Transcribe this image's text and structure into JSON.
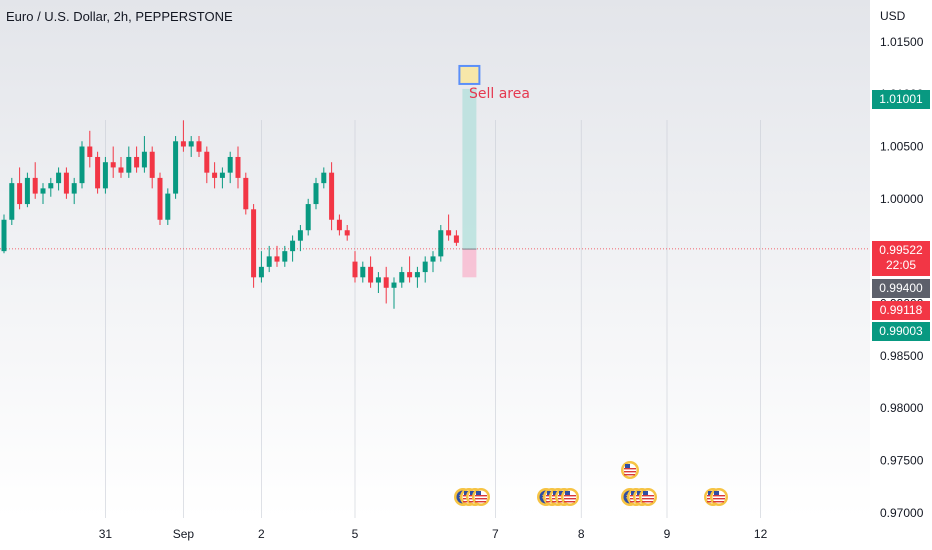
{
  "header": {
    "title": "Euro / U.S. Dollar, 2h, PEPPERSTONE",
    "currency": "USD"
  },
  "annotation": {
    "sell_label": "Sell area"
  },
  "price_tags": {
    "high": "1.01001",
    "close": "0.99522",
    "countdown": "22:05",
    "grey": "0.99400",
    "red": "0.99118",
    "green": "0.99003"
  },
  "colors": {
    "up": "#089981",
    "down": "#f23645",
    "accent": "#2962ff",
    "zone_target": "#b2dfdb",
    "zone_stop": "#f8bbd0"
  },
  "chart_data": {
    "type": "candlestick",
    "title": "Euro / U.S. Dollar, 2h, PEPPERSTONE",
    "ylim": [
      0.9695,
      1.019
    ],
    "y_ticks": [
      "1.01500",
      "1.01000",
      "1.00500",
      "1.00000",
      "0.99500",
      "0.99000",
      "0.98500",
      "0.98000",
      "0.97500",
      "0.97000"
    ],
    "y_tick_values": [
      1.015,
      1.01,
      1.005,
      1.0,
      0.995,
      0.99,
      0.985,
      0.98,
      0.975,
      0.97
    ],
    "x_tick_labels": [
      "31",
      "Sep",
      "2",
      "5",
      "7",
      "8",
      "9",
      "12"
    ],
    "x_tick_bar_index": [
      13,
      23,
      33,
      45,
      63,
      74,
      85,
      97
    ],
    "current_price": 0.99522,
    "ohlc": [
      [
        0.995,
        0.9985,
        0.9948,
        0.998
      ],
      [
        0.998,
        1.002,
        0.9975,
        1.0015
      ],
      [
        1.0015,
        1.003,
        0.999,
        0.9995
      ],
      [
        0.9995,
        1.0025,
        0.9992,
        1.002
      ],
      [
        1.002,
        1.0035,
        1.0,
        1.0005
      ],
      [
        1.0005,
        1.0015,
        0.9995,
        1.001
      ],
      [
        1.001,
        1.002,
        1.0002,
        1.0015
      ],
      [
        1.0015,
        1.003,
        1.0008,
        1.0025
      ],
      [
        1.0025,
        1.003,
        1.0,
        1.0005
      ],
      [
        1.0005,
        1.002,
        0.9995,
        1.0015
      ],
      [
        1.0015,
        1.0055,
        1.001,
        1.005
      ],
      [
        1.005,
        1.0065,
        1.003,
        1.004
      ],
      [
        1.004,
        1.0045,
        1.0005,
        1.001
      ],
      [
        1.001,
        1.004,
        1.0005,
        1.0035
      ],
      [
        1.0035,
        1.005,
        1.002,
        1.003
      ],
      [
        1.003,
        1.004,
        1.002,
        1.0025
      ],
      [
        1.0025,
        1.005,
        1.002,
        1.004
      ],
      [
        1.004,
        1.005,
        1.0025,
        1.003
      ],
      [
        1.003,
        1.006,
        1.0025,
        1.0045
      ],
      [
        1.0045,
        1.005,
        1.001,
        1.002
      ],
      [
        1.002,
        1.0025,
        0.9975,
        0.998
      ],
      [
        0.998,
        1.001,
        0.9975,
        1.0005
      ],
      [
        1.0005,
        1.006,
        1.0,
        1.0055
      ],
      [
        1.0055,
        1.0075,
        1.0045,
        1.005
      ],
      [
        1.005,
        1.006,
        1.004,
        1.0055
      ],
      [
        1.0055,
        1.006,
        1.004,
        1.0045
      ],
      [
        1.0045,
        1.005,
        1.0015,
        1.0025
      ],
      [
        1.0025,
        1.0035,
        1.001,
        1.002
      ],
      [
        1.002,
        1.003,
        1.001,
        1.0025
      ],
      [
        1.0025,
        1.0045,
        1.0015,
        1.004
      ],
      [
        1.004,
        1.005,
        1.001,
        1.002
      ],
      [
        1.002,
        1.0025,
        0.9985,
        0.999
      ],
      [
        0.999,
        0.9995,
        0.9915,
        0.9925
      ],
      [
        0.9925,
        0.995,
        0.992,
        0.9935
      ],
      [
        0.9935,
        0.9955,
        0.993,
        0.9945
      ],
      [
        0.9945,
        0.9955,
        0.9935,
        0.994
      ],
      [
        0.994,
        0.9955,
        0.9935,
        0.995
      ],
      [
        0.995,
        0.9965,
        0.994,
        0.996
      ],
      [
        0.996,
        0.9975,
        0.995,
        0.997
      ],
      [
        0.997,
        1.0,
        0.9965,
        0.9995
      ],
      [
        0.9995,
        1.002,
        0.999,
        1.0015
      ],
      [
        1.0015,
        1.003,
        1.001,
        1.0025
      ],
      [
        1.0025,
        1.0035,
        0.997,
        0.998
      ],
      [
        0.998,
        0.9985,
        0.9965,
        0.997
      ],
      [
        0.997,
        0.9975,
        0.996,
        0.9965
      ],
      [
        0.994,
        0.995,
        0.992,
        0.9925
      ],
      [
        0.9925,
        0.994,
        0.992,
        0.9935
      ],
      [
        0.9935,
        0.9945,
        0.9915,
        0.992
      ],
      [
        0.992,
        0.993,
        0.991,
        0.9925
      ],
      [
        0.9925,
        0.9935,
        0.99,
        0.9915
      ],
      [
        0.9915,
        0.9925,
        0.9895,
        0.992
      ],
      [
        0.992,
        0.9935,
        0.9915,
        0.993
      ],
      [
        0.993,
        0.9945,
        0.992,
        0.9925
      ],
      [
        0.9925,
        0.9935,
        0.9915,
        0.993
      ],
      [
        0.993,
        0.9945,
        0.992,
        0.994
      ],
      [
        0.994,
        0.995,
        0.993,
        0.9945
      ],
      [
        0.9945,
        0.9975,
        0.994,
        0.997
      ],
      [
        0.997,
        0.9985,
        0.996,
        0.9965
      ],
      [
        0.9965,
        0.997,
        0.9955,
        0.9958
      ]
    ],
    "trade": {
      "entry": 0.9952,
      "stop": 0.9925,
      "target": 1.0105
    },
    "event_markers": [
      "EU",
      "US",
      "US",
      "US",
      "EU",
      "US",
      "US",
      "US",
      "US",
      "US",
      "EU",
      "US",
      "US",
      "US",
      "US"
    ]
  }
}
